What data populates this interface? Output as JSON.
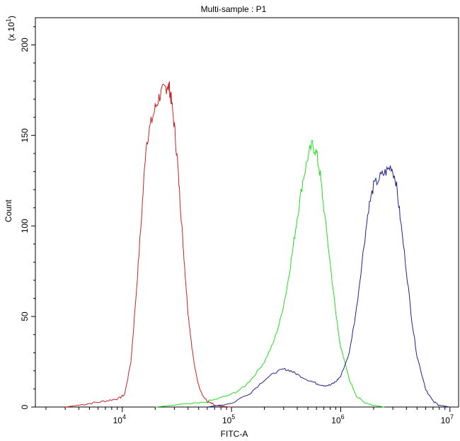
{
  "chart_data": {
    "type": "line",
    "title": "Multi-sample : P1",
    "xlabel": "FITC-A",
    "ylabel": "Count",
    "y_multiplier_label": "(x 10",
    "y_multiplier_exp": "1",
    "y_multiplier_close": ")",
    "x_scale": "log",
    "xlim": [
      1600,
      12000000
    ],
    "ylim": [
      0,
      215
    ],
    "x_ticks": [
      {
        "base": "10",
        "exp": "4",
        "value": 10000
      },
      {
        "base": "10",
        "exp": "5",
        "value": 100000
      },
      {
        "base": "10",
        "exp": "6",
        "value": 1000000
      },
      {
        "base": "10",
        "exp": "7",
        "value": 10000000
      }
    ],
    "y_ticks": [
      {
        "label": "0",
        "value": 0
      },
      {
        "label": "50",
        "value": 50
      },
      {
        "label": "100",
        "value": 100
      },
      {
        "label": "150",
        "value": 150
      },
      {
        "label": "200",
        "value": 200
      }
    ],
    "grid": false,
    "series": [
      {
        "color": "#cc2222",
        "x": [
          3000,
          4000,
          5000,
          6500,
          8000,
          9500,
          10500,
          12000,
          13500,
          15000,
          16500,
          18000,
          20000,
          22000,
          24000,
          26000,
          27000,
          28000,
          30000,
          32000,
          34000,
          36000,
          38000,
          40000,
          43000,
          46000,
          50000,
          55000,
          60000,
          65000,
          70000,
          80000,
          90000,
          100000
        ],
        "y": [
          0,
          1,
          2,
          3,
          4,
          5,
          7,
          25,
          65,
          105,
          145,
          155,
          165,
          172,
          175,
          178,
          176,
          170,
          155,
          135,
          112,
          90,
          70,
          52,
          35,
          22,
          12,
          6,
          3,
          2,
          1,
          0.5,
          0.2,
          0
        ]
      },
      {
        "color": "#22dd22",
        "x": [
          20000,
          30000,
          50000,
          70000,
          100000,
          130000,
          160000,
          200000,
          240000,
          280000,
          320000,
          360000,
          400000,
          450000,
          500000,
          550000,
          600000,
          650000,
          700000,
          800000,
          900000,
          1000000,
          1200000,
          1400000,
          1600000,
          2000000,
          2500000
        ],
        "y": [
          0,
          1,
          2,
          4,
          7,
          11,
          17,
          25,
          35,
          48,
          65,
          85,
          105,
          125,
          138,
          145,
          140,
          128,
          110,
          80,
          52,
          33,
          15,
          6,
          3,
          1,
          0
        ]
      },
      {
        "color": "#22228c",
        "x": [
          60000,
          100000,
          150000,
          200000,
          250000,
          300000,
          350000,
          400000,
          500000,
          600000,
          700000,
          800000,
          900000,
          1000000,
          1200000,
          1400000,
          1600000,
          1800000,
          2000000,
          2300000,
          2600000,
          2900000,
          3200000,
          3500000,
          4000000,
          4500000,
          5000000,
          6000000,
          7000000,
          8000000,
          10000000
        ],
        "y": [
          0,
          2,
          8,
          15,
          19,
          21,
          20,
          18,
          15,
          13,
          12,
          12,
          14,
          17,
          30,
          55,
          85,
          110,
          122,
          127,
          130,
          133,
          125,
          105,
          75,
          47,
          28,
          10,
          3,
          1,
          0
        ]
      }
    ]
  }
}
